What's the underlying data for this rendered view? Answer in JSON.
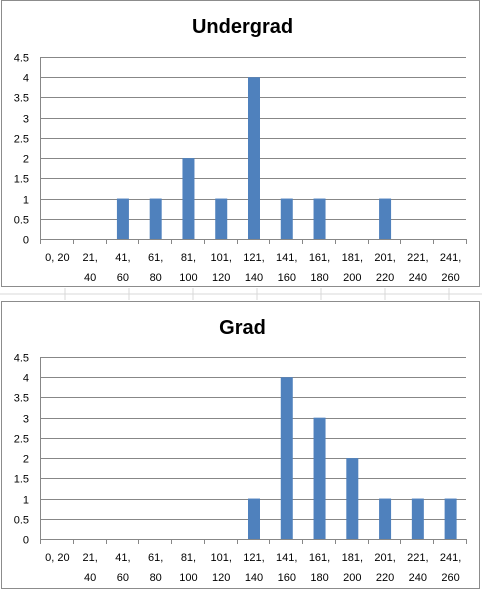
{
  "colors": {
    "bar": "#4f81bd",
    "gridline": "#878787",
    "sheet_gridline": "#d9d9d9"
  },
  "chart_data": [
    {
      "type": "bar",
      "title": "Undergrad",
      "categories": [
        [
          "0, 20",
          ""
        ],
        [
          "21,",
          "40"
        ],
        [
          "41,",
          "60"
        ],
        [
          "61,",
          "80"
        ],
        [
          "81,",
          "100"
        ],
        [
          "101,",
          "120"
        ],
        [
          "121,",
          "140"
        ],
        [
          "141,",
          "160"
        ],
        [
          "161,",
          "180"
        ],
        [
          "181,",
          "200"
        ],
        [
          "201,",
          "220"
        ],
        [
          "221,",
          "240"
        ],
        [
          "241,",
          "260"
        ]
      ],
      "values": [
        0,
        0,
        1,
        1,
        2,
        1,
        4,
        1,
        1,
        0,
        1,
        0,
        0
      ],
      "ylim": [
        0,
        4.5
      ],
      "yticks": [
        "0",
        "0.5",
        "1",
        "1.5",
        "2",
        "2.5",
        "3",
        "3.5",
        "4",
        "4.5"
      ],
      "xlabel": "",
      "ylabel": "",
      "grid": true,
      "legend": "none"
    },
    {
      "type": "bar",
      "title": "Grad",
      "categories": [
        [
          "0, 20",
          ""
        ],
        [
          "21,",
          "40"
        ],
        [
          "41,",
          "60"
        ],
        [
          "61,",
          "80"
        ],
        [
          "81,",
          "100"
        ],
        [
          "101,",
          "120"
        ],
        [
          "121,",
          "140"
        ],
        [
          "141,",
          "160"
        ],
        [
          "161,",
          "180"
        ],
        [
          "181,",
          "200"
        ],
        [
          "201,",
          "220"
        ],
        [
          "221,",
          "240"
        ],
        [
          "241,",
          "260"
        ]
      ],
      "values": [
        0,
        0,
        0,
        0,
        0,
        0,
        1,
        4,
        3,
        2,
        1,
        1,
        1
      ],
      "ylim": [
        0,
        4.5
      ],
      "yticks": [
        "0",
        "0.5",
        "1",
        "1.5",
        "2",
        "2.5",
        "3",
        "3.5",
        "4",
        "4.5"
      ],
      "xlabel": "",
      "ylabel": "",
      "grid": true,
      "legend": "none"
    }
  ]
}
